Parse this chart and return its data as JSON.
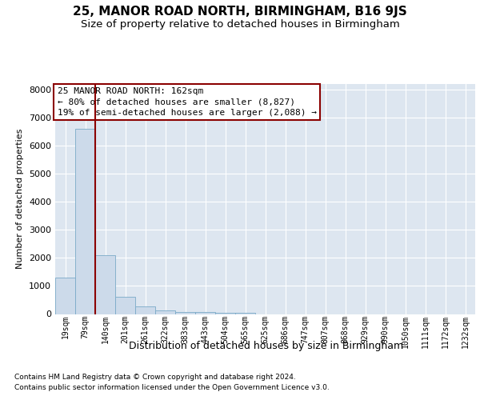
{
  "title": "25, MANOR ROAD NORTH, BIRMINGHAM, B16 9JS",
  "subtitle": "Size of property relative to detached houses in Birmingham",
  "xlabel": "Distribution of detached houses by size in Birmingham",
  "ylabel": "Number of detached properties",
  "footnote1": "Contains HM Land Registry data © Crown copyright and database right 2024.",
  "footnote2": "Contains public sector information licensed under the Open Government Licence v3.0.",
  "bar_color": "#ccdaea",
  "bar_edge_color": "#7aaac8",
  "vline_color": "#8b0000",
  "annotation_title": "25 MANOR ROAD NORTH: 162sqm",
  "annotation_line1": "← 80% of detached houses are smaller (8,827)",
  "annotation_line2": "19% of semi-detached houses are larger (2,088) →",
  "annotation_box_edgecolor": "#8b0000",
  "categories": [
    "19sqm",
    "79sqm",
    "140sqm",
    "201sqm",
    "261sqm",
    "322sqm",
    "383sqm",
    "443sqm",
    "504sqm",
    "565sqm",
    "625sqm",
    "686sqm",
    "747sqm",
    "807sqm",
    "868sqm",
    "929sqm",
    "990sqm",
    "1050sqm",
    "1111sqm",
    "1172sqm",
    "1232sqm"
  ],
  "values": [
    1300,
    6600,
    2100,
    600,
    280,
    120,
    80,
    60,
    40,
    30,
    0,
    0,
    0,
    0,
    0,
    0,
    0,
    0,
    0,
    0,
    0
  ],
  "ylim_max": 8200,
  "yticks": [
    0,
    1000,
    2000,
    3000,
    4000,
    5000,
    6000,
    7000,
    8000
  ],
  "background_color": "#dde6f0",
  "grid_color": "#ffffff",
  "title_fontsize": 11,
  "subtitle_fontsize": 9.5,
  "ylabel_fontsize": 8,
  "xlabel_fontsize": 9,
  "tick_fontsize": 8,
  "xtick_fontsize": 7,
  "footnote_fontsize": 6.5,
  "annot_fontsize": 8
}
